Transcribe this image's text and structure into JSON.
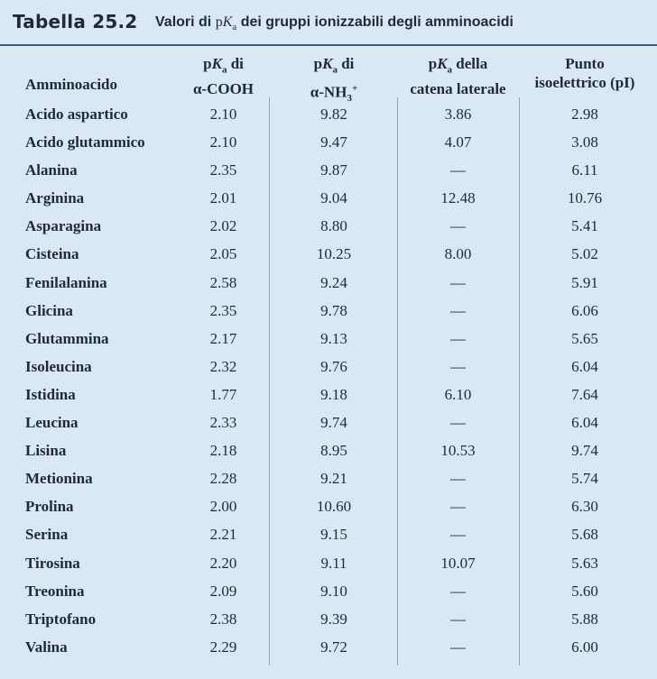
{
  "caption": {
    "label": "Tabella 25.2",
    "text_before": "Valori di ",
    "pk_p": "p",
    "pk_k": "K",
    "pk_sub": "a",
    "text_after": " dei gruppi ionizzabili degli amminoacidi"
  },
  "headers": {
    "amminoacido": "Amminoacido",
    "col1_line1_p": "p",
    "col1_line1_k": "K",
    "col1_line1_sub": "a",
    "col1_line1_rest": " di",
    "col1_line2": "α-COOH",
    "col2_line1_p": "p",
    "col2_line1_k": "K",
    "col2_line1_sub": "a",
    "col2_line1_rest": " di",
    "col2_line2_a": "α-NH",
    "col2_line2_sub": "3",
    "col2_line2_sup": "+",
    "col3_line1_p": "p",
    "col3_line1_k": "K",
    "col3_line1_sub": "a",
    "col3_line1_rest": " della",
    "col3_line2": "catena laterale",
    "col4_line1": "Punto",
    "col4_line2": "isoelettrico (pI)"
  },
  "rows": [
    [
      "Acido aspartico",
      "2.10",
      "9.82",
      "3.86",
      "2.98"
    ],
    [
      "Acido glutammico",
      "2.10",
      "9.47",
      "4.07",
      "3.08"
    ],
    [
      "Alanina",
      "2.35",
      "9.87",
      "—",
      "6.11"
    ],
    [
      "Arginina",
      "2.01",
      "9.04",
      "12.48",
      "10.76"
    ],
    [
      "Asparagina",
      "2.02",
      "8.80",
      "—",
      "5.41"
    ],
    [
      "Cisteina",
      "2.05",
      "10.25",
      "8.00",
      "5.02"
    ],
    [
      "Fenilalanina",
      "2.58",
      "9.24",
      "—",
      "5.91"
    ],
    [
      "Glicina",
      "2.35",
      "9.78",
      "—",
      "6.06"
    ],
    [
      "Glutammina",
      "2.17",
      "9.13",
      "—",
      "5.65"
    ],
    [
      "Isoleucina",
      "2.32",
      "9.76",
      "—",
      "6.04"
    ],
    [
      "Istidina",
      "1.77",
      "9.18",
      "6.10",
      "7.64"
    ],
    [
      "Leucina",
      "2.33",
      "9.74",
      "—",
      "6.04"
    ],
    [
      "Lisina",
      "2.18",
      "8.95",
      "10.53",
      "9.74"
    ],
    [
      "Metionina",
      "2.28",
      "9.21",
      "—",
      "5.74"
    ],
    [
      "Prolina",
      "2.00",
      "10.60",
      "—",
      "6.30"
    ],
    [
      "Serina",
      "2.21",
      "9.15",
      "—",
      "5.68"
    ],
    [
      "Tirosina",
      "2.20",
      "9.11",
      "10.07",
      "5.63"
    ],
    [
      "Treonina",
      "2.09",
      "9.10",
      "—",
      "5.60"
    ],
    [
      "Triptofano",
      "2.38",
      "9.39",
      "—",
      "5.88"
    ],
    [
      "Valina",
      "2.29",
      "9.72",
      "—",
      "6.00"
    ]
  ],
  "colors": {
    "background": "#dae8f4",
    "rule": "#3a5a80",
    "column_divider": "#8fa6be"
  }
}
